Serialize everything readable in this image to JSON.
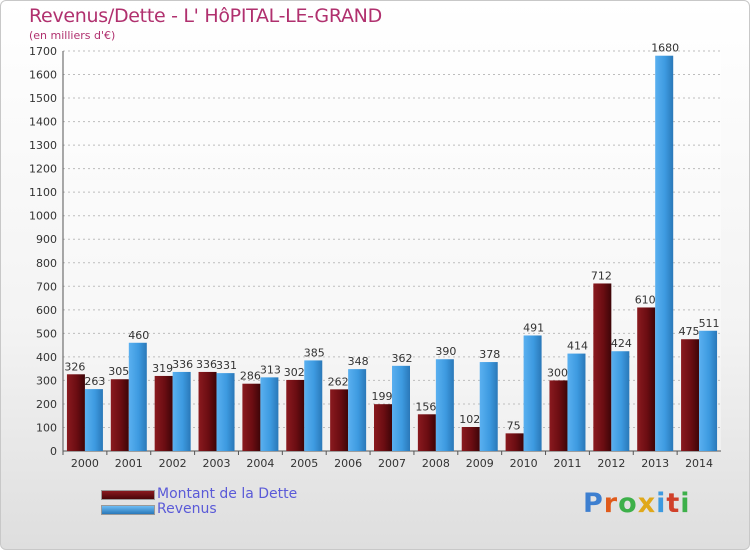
{
  "title": "Revenus/Dette - L' HôPITAL-LE-GRAND",
  "subtitle": "(en milliers d'€)",
  "logo_text": "Proxiti",
  "chart_data": {
    "type": "bar",
    "title": "Revenus/Dette - L' HôPITAL-LE-GRAND",
    "subtitle": "(en milliers d'€)",
    "categories": [
      "2000",
      "2001",
      "2002",
      "2003",
      "2004",
      "2005",
      "2006",
      "2007",
      "2008",
      "2009",
      "2010",
      "2011",
      "2012",
      "2013",
      "2014"
    ],
    "series": [
      {
        "name": "Montant de la Dette",
        "color": "#6b0d12",
        "values": [
          326,
          305,
          319,
          336,
          286,
          302,
          262,
          199,
          156,
          102,
          75,
          300,
          712,
          610,
          475
        ]
      },
      {
        "name": "Revenus",
        "color": "#3d9ae0",
        "values": [
          263,
          460,
          336,
          331,
          313,
          385,
          348,
          362,
          390,
          378,
          491,
          414,
          424,
          1680,
          511
        ]
      }
    ],
    "ylim": [
      0,
      1700
    ],
    "yticks": [
      0,
      100,
      200,
      300,
      400,
      500,
      600,
      700,
      800,
      900,
      1000,
      1100,
      1200,
      1300,
      1400,
      1500,
      1600,
      1700
    ],
    "grid": true,
    "legend_position": "bottom-left"
  }
}
